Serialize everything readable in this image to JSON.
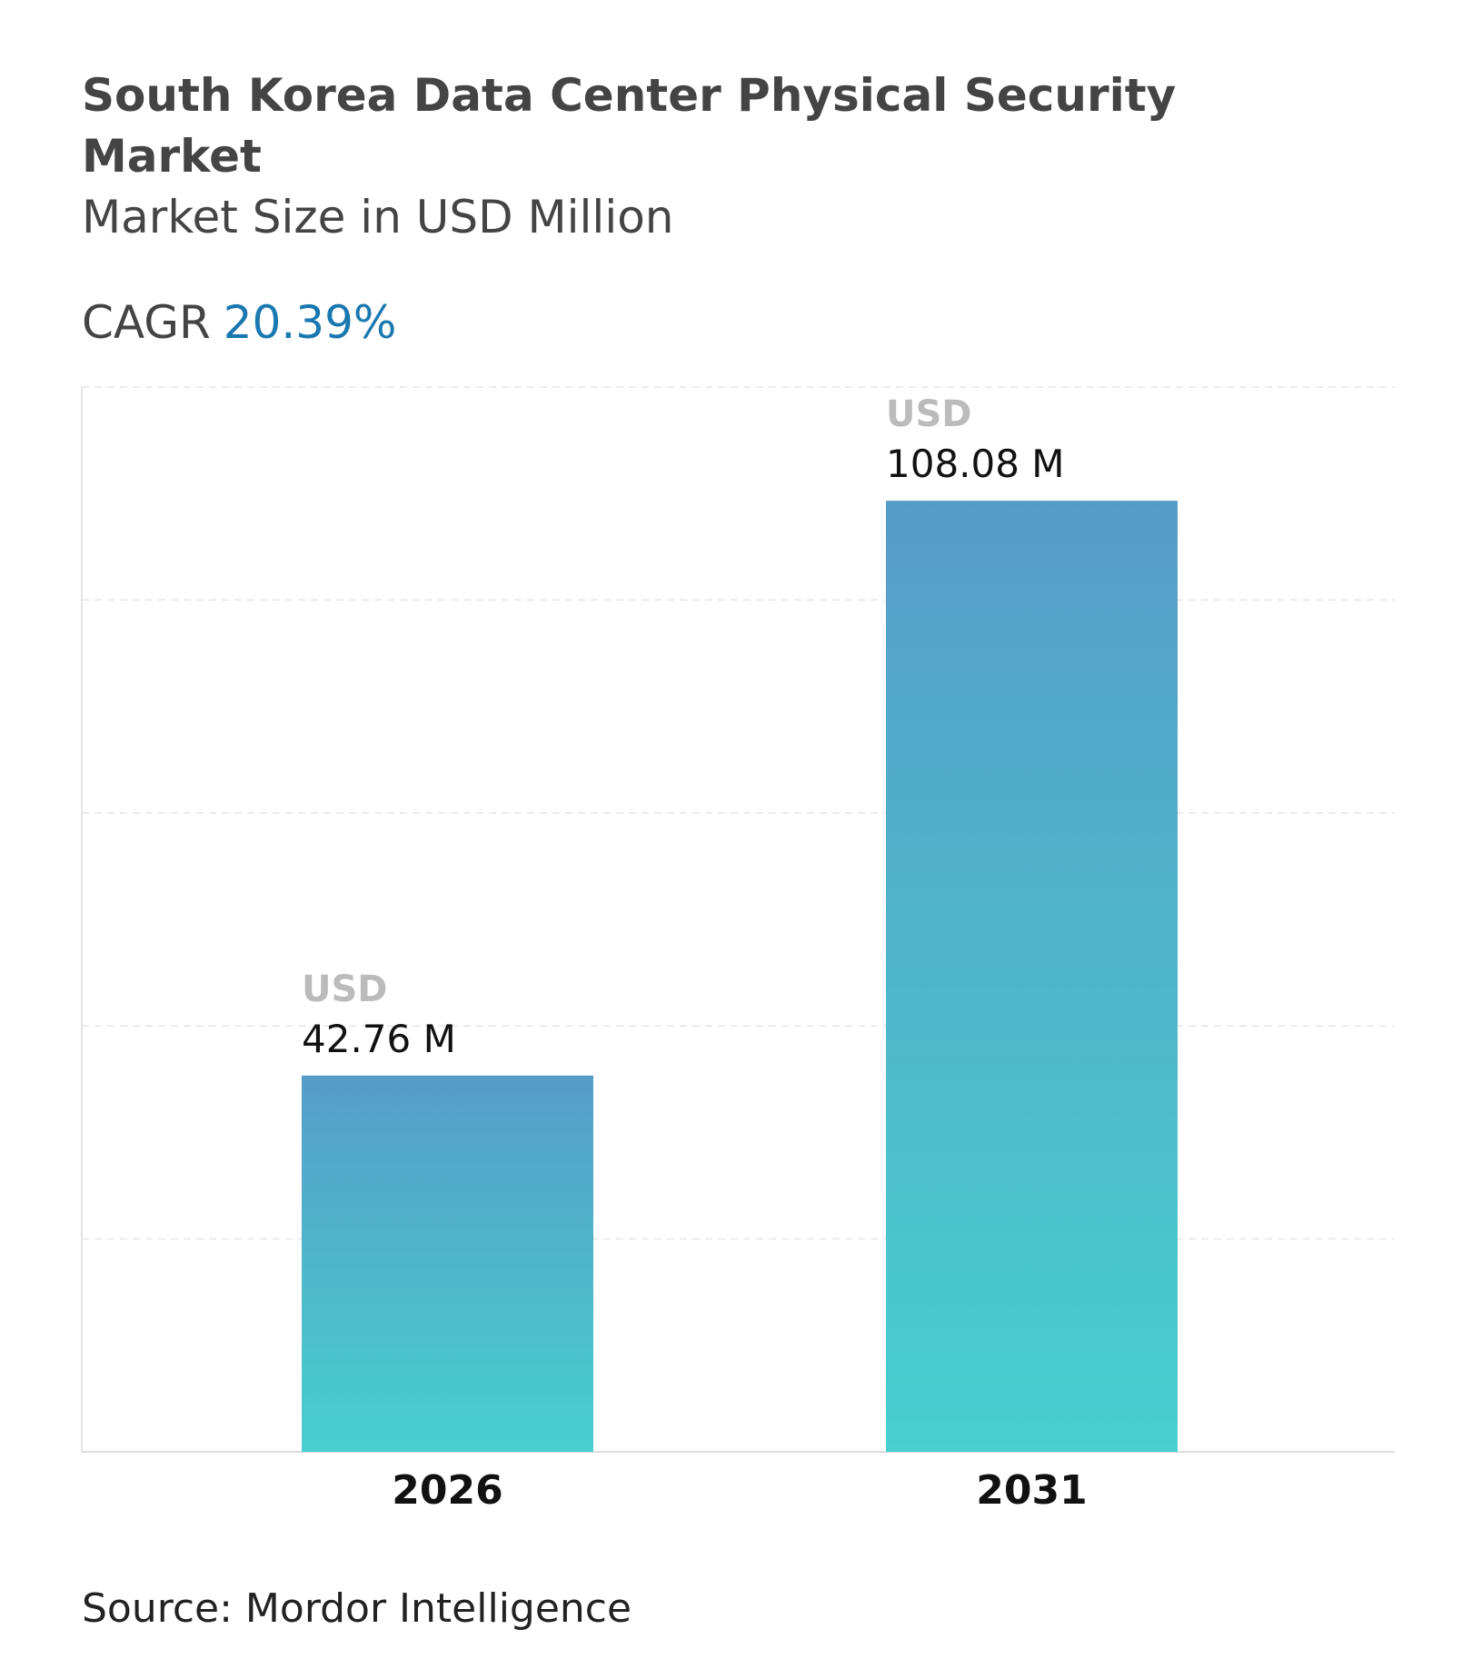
{
  "header": {
    "title": "South Korea Data Center Physical Security Market",
    "subtitle": "Market Size in USD Million",
    "cagr_label": "CAGR",
    "cagr_value": "20.39%"
  },
  "footer": {
    "source": "Source: Mordor Intelligence"
  },
  "colors": {
    "accent": "#1a78b0",
    "bar_top": "#559dc8",
    "bar_bottom": "#48cfcf"
  },
  "chart_data": {
    "type": "bar",
    "categories": [
      "2026",
      "2031"
    ],
    "values": [
      42.76,
      108.08
    ],
    "data_labels": [
      {
        "unit": "USD",
        "value": "42.76 M"
      },
      {
        "unit": "USD",
        "value": "108.08 M"
      }
    ],
    "ylim": [
      0,
      121
    ],
    "grid": true,
    "legend": "none"
  }
}
